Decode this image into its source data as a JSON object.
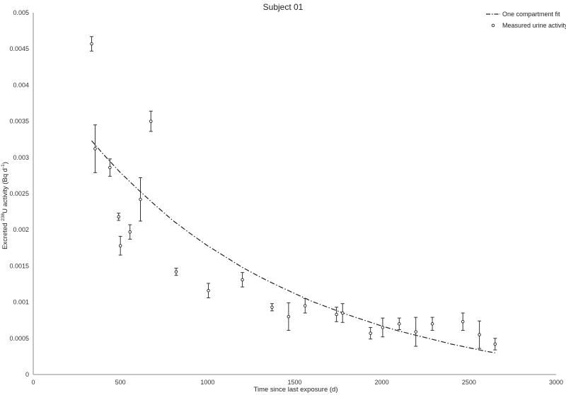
{
  "chart_data": {
    "type": "scatter",
    "title": "Subject 01",
    "xlabel": "Time since last exposure (d)",
    "ylabel_parts": [
      "Excreted ",
      "238",
      "U activity (Bq d",
      "-1",
      ")"
    ],
    "xlim": [
      0,
      3000
    ],
    "ylim": [
      0,
      0.005
    ],
    "x_ticks": [
      "0",
      "500",
      "1000",
      "1500",
      "2000",
      "2500",
      "3000"
    ],
    "y_ticks": [
      "0",
      "0.0005",
      "0.001",
      "0.0015",
      "0.002",
      "0.0025",
      "0.003",
      "0.0035",
      "0.004",
      "0.0045",
      "0.005"
    ],
    "grid": false,
    "legend": {
      "position": "top-right",
      "fit_label": "One compartment fit",
      "points_label": "Measured urine activity"
    },
    "series": [
      {
        "name": "Measured urine activity",
        "kind": "points-with-error-bars",
        "points": [
          {
            "x": 335,
            "y": 0.00457,
            "err": 0.0001
          },
          {
            "x": 355,
            "y": 0.00312,
            "err": 0.00033
          },
          {
            "x": 440,
            "y": 0.00286,
            "err": 0.00012
          },
          {
            "x": 490,
            "y": 0.00218,
            "err": 5e-05
          },
          {
            "x": 500,
            "y": 0.00178,
            "err": 0.00013
          },
          {
            "x": 555,
            "y": 0.00197,
            "err": 0.0001
          },
          {
            "x": 615,
            "y": 0.00242,
            "err": 0.0003
          },
          {
            "x": 675,
            "y": 0.0035,
            "err": 0.00014
          },
          {
            "x": 820,
            "y": 0.00142,
            "err": 5e-05
          },
          {
            "x": 1005,
            "y": 0.00116,
            "err": 0.0001
          },
          {
            "x": 1200,
            "y": 0.00131,
            "err": 0.0001
          },
          {
            "x": 1370,
            "y": 0.00093,
            "err": 5e-05
          },
          {
            "x": 1465,
            "y": 0.0008,
            "err": 0.00019
          },
          {
            "x": 1560,
            "y": 0.00095,
            "err": 0.0001
          },
          {
            "x": 1740,
            "y": 0.00083,
            "err": 0.0001
          },
          {
            "x": 1775,
            "y": 0.00085,
            "err": 0.00013
          },
          {
            "x": 1935,
            "y": 0.00057,
            "err": 8e-05
          },
          {
            "x": 2005,
            "y": 0.00065,
            "err": 0.00013
          },
          {
            "x": 2100,
            "y": 0.0007,
            "err": 8e-05
          },
          {
            "x": 2195,
            "y": 0.00059,
            "err": 0.0002
          },
          {
            "x": 2290,
            "y": 0.0007,
            "err": 9e-05
          },
          {
            "x": 2465,
            "y": 0.00073,
            "err": 0.00012
          },
          {
            "x": 2560,
            "y": 0.00055,
            "err": 0.00019
          },
          {
            "x": 2650,
            "y": 0.00042,
            "err": 8e-05
          }
        ]
      },
      {
        "name": "One compartment fit",
        "kind": "dash-dot-line",
        "x": [
          335,
          400,
          500,
          600,
          700,
          800,
          900,
          1000,
          1100,
          1200,
          1300,
          1400,
          1500,
          1600,
          1700,
          1800,
          1900,
          2000,
          2100,
          2200,
          2300,
          2400,
          2500,
          2600,
          2650
        ],
        "y": [
          0.00323,
          0.00305,
          0.00279,
          0.00256,
          0.00234,
          0.00213,
          0.00195,
          0.00178,
          0.00163,
          0.00148,
          0.00135,
          0.00123,
          0.00112,
          0.00101,
          0.00092,
          0.00083,
          0.00075,
          0.00067,
          0.0006,
          0.00054,
          0.00048,
          0.00042,
          0.00037,
          0.00032,
          0.0003
        ]
      }
    ]
  }
}
